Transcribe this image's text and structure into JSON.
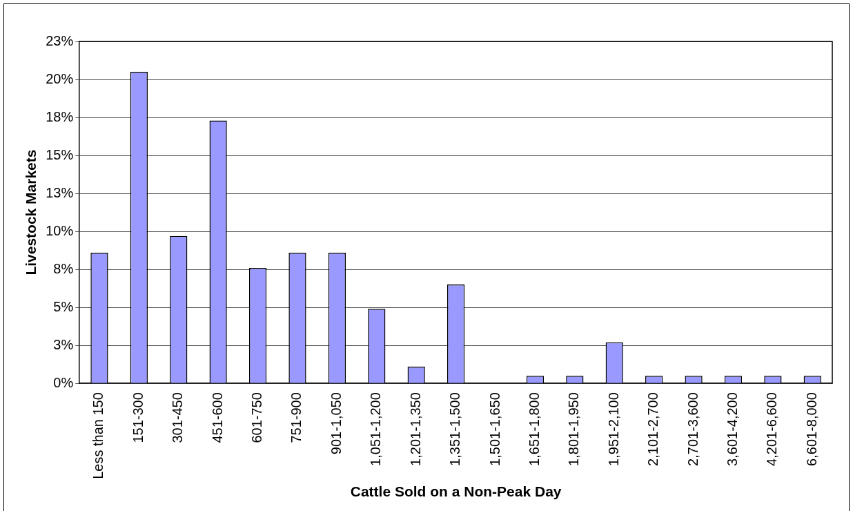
{
  "chart_data": {
    "type": "bar",
    "xlabel": "Cattle Sold on a Non-Peak Day",
    "ylabel": "Livestock Markets",
    "categories": [
      "Less than 150",
      "151-300",
      "301-450",
      "451-600",
      "601-750",
      "751-900",
      "901-1,050",
      "1,051-1,200",
      "1,201-1,350",
      "1,351-1,500",
      "1,501-1,650",
      "1,651-1,800",
      "1,801-1,950",
      "1,951-2,100",
      "2,101-2,700",
      "2,701-3,600",
      "3,601-4,200",
      "4,201-6,600",
      "6,601-8,000"
    ],
    "values": [
      8.6,
      20.5,
      9.7,
      17.3,
      7.6,
      8.6,
      8.6,
      4.9,
      1.1,
      6.5,
      0,
      0.5,
      0.5,
      2.7,
      0.5,
      0.5,
      0.5,
      0.5,
      0.5
    ],
    "color": "#9999ff",
    "ylim": [
      0,
      22.5
    ],
    "yticks": [
      {
        "value": 0,
        "label": "0%"
      },
      {
        "value": 2.5,
        "label": "3%"
      },
      {
        "value": 5,
        "label": "5%"
      },
      {
        "value": 7.5,
        "label": "8%"
      },
      {
        "value": 10,
        "label": "10%"
      },
      {
        "value": 12.5,
        "label": "13%"
      },
      {
        "value": 15,
        "label": "15%"
      },
      {
        "value": 17.5,
        "label": "18%"
      },
      {
        "value": 20,
        "label": "20%"
      },
      {
        "value": 22.5,
        "label": "23%"
      }
    ],
    "grid": "y",
    "legend": false
  }
}
